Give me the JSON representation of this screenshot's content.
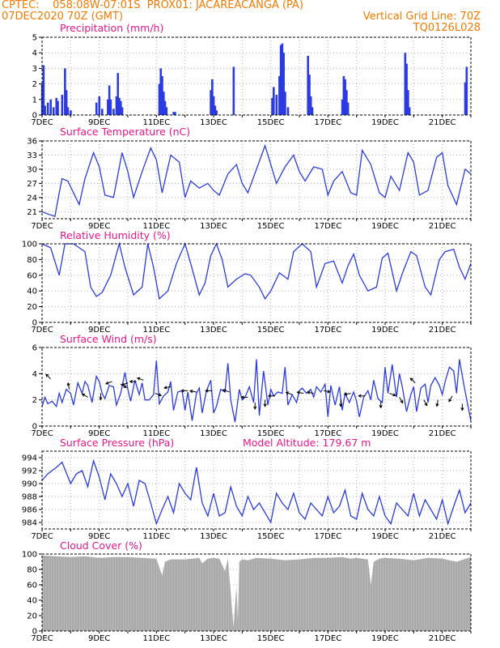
{
  "header": {
    "line1_left": "CPTEC:",
    "coords": "058:08W-07:01S",
    "station": "PROX01: JACAREACANGA (PA)",
    "run": "07DEC2020 70Z (GMT)",
    "grid_line": "Vertical Grid Line: 70Z",
    "code": "TQ0126L028"
  },
  "colors": {
    "header": "#f47a00",
    "titles": "#e8178a",
    "series": "#2b3be0",
    "cloud": "#a9a9a9",
    "grid": "#b0b0b0"
  },
  "x_day_labels": [
    "7DEC",
    "9DEC",
    "11DEC",
    "13DEC",
    "15DEC",
    "17DEC",
    "19DEC",
    "21DEC"
  ],
  "chart_data": [
    {
      "id": "precip",
      "type": "bar",
      "title": "Precipitation (mm/h)",
      "ylim": [
        0,
        5
      ],
      "yticks": [
        "0",
        "1",
        "2",
        "3",
        "4",
        "5"
      ],
      "bars": [
        [
          7.0,
          2.0
        ],
        [
          7.05,
          3.2
        ],
        [
          7.1,
          0.6
        ],
        [
          7.2,
          0.8
        ],
        [
          7.3,
          1.0
        ],
        [
          7.4,
          0.5
        ],
        [
          7.5,
          1.1
        ],
        [
          7.55,
          0.9
        ],
        [
          7.7,
          1.3
        ],
        [
          7.8,
          3.0
        ],
        [
          7.85,
          1.6
        ],
        [
          7.9,
          0.5
        ],
        [
          8.0,
          0.3
        ],
        [
          8.9,
          0.8
        ],
        [
          9.0,
          1.2
        ],
        [
          9.1,
          0.4
        ],
        [
          9.3,
          1.0
        ],
        [
          9.35,
          1.9
        ],
        [
          9.4,
          1.0
        ],
        [
          9.5,
          0.4
        ],
        [
          9.6,
          1.2
        ],
        [
          9.65,
          2.7
        ],
        [
          9.7,
          1.1
        ],
        [
          9.75,
          0.9
        ],
        [
          9.8,
          0.5
        ],
        [
          11.1,
          2.0
        ],
        [
          11.15,
          3.0
        ],
        [
          11.2,
          2.5
        ],
        [
          11.25,
          1.5
        ],
        [
          11.3,
          0.9
        ],
        [
          11.35,
          0.5
        ],
        [
          11.6,
          0.2
        ],
        [
          11.65,
          0.2
        ],
        [
          12.9,
          1.6
        ],
        [
          12.95,
          2.3
        ],
        [
          13.0,
          1.2
        ],
        [
          13.05,
          0.6
        ],
        [
          13.1,
          0.3
        ],
        [
          13.7,
          3.1
        ],
        [
          15.05,
          1.1
        ],
        [
          15.1,
          1.8
        ],
        [
          15.2,
          1.3
        ],
        [
          15.3,
          2.5
        ],
        [
          15.35,
          4.5
        ],
        [
          15.4,
          4.6
        ],
        [
          15.45,
          4.0
        ],
        [
          15.5,
          1.5
        ],
        [
          15.6,
          0.5
        ],
        [
          16.3,
          3.8
        ],
        [
          16.35,
          2.6
        ],
        [
          16.4,
          1.2
        ],
        [
          16.45,
          0.5
        ],
        [
          17.5,
          1.0
        ],
        [
          17.55,
          2.5
        ],
        [
          17.6,
          2.3
        ],
        [
          17.65,
          1.6
        ],
        [
          17.7,
          0.8
        ],
        [
          19.7,
          4.0
        ],
        [
          19.75,
          3.3
        ],
        [
          19.8,
          1.6
        ],
        [
          19.85,
          0.5
        ],
        [
          21.8,
          2.1
        ],
        [
          21.85,
          3.1
        ]
      ]
    },
    {
      "id": "temp",
      "type": "line",
      "title": "Surface Temperature (nC)",
      "ylim": [
        19.5,
        36
      ],
      "yticks": [
        "21",
        "24",
        "27",
        "30",
        "33",
        "36"
      ],
      "x": [
        7.0,
        7.2,
        7.45,
        7.6,
        7.7,
        7.9,
        8.3,
        8.5,
        8.8,
        9.0,
        9.2,
        9.5,
        9.8,
        10.0,
        10.2,
        10.5,
        10.8,
        11.0,
        11.2,
        11.5,
        11.8,
        12.0,
        12.2,
        12.5,
        12.8,
        13.0,
        13.2,
        13.5,
        13.8,
        14.0,
        14.2,
        14.5,
        14.8,
        15.0,
        15.2,
        15.5,
        15.8,
        16.0,
        16.2,
        16.5,
        16.8,
        17.0,
        17.2,
        17.5,
        17.8,
        18.0,
        18.2,
        18.5,
        18.8,
        19.0,
        19.2,
        19.5,
        19.8,
        20.0,
        20.2,
        20.5,
        20.8,
        21.0,
        21.2,
        21.5,
        21.8,
        22.0
      ],
      "y": [
        21.0,
        20.5,
        20.0,
        25.0,
        28.0,
        27.5,
        22.5,
        28.0,
        33.5,
        30.5,
        24.5,
        24.0,
        33.5,
        29.5,
        24.0,
        29.5,
        34.5,
        32.0,
        25.0,
        33.0,
        31.5,
        24.0,
        27.5,
        26.0,
        27.0,
        25.5,
        24.5,
        29.0,
        31.0,
        27.0,
        25.0,
        30.0,
        35.0,
        31.0,
        27.0,
        30.5,
        33.0,
        29.5,
        27.5,
        30.5,
        30.0,
        24.5,
        27.5,
        29.5,
        25.0,
        24.5,
        34.0,
        31.0,
        25.0,
        24.0,
        28.5,
        25.5,
        33.5,
        31.5,
        24.5,
        25.5,
        32.5,
        33.5,
        26.5,
        22.5,
        30.0,
        29.0
      ]
    },
    {
      "id": "rh",
      "type": "line",
      "title": "Relative Humidity (%)",
      "ylim": [
        0,
        100
      ],
      "yticks": [
        "0",
        "20",
        "40",
        "60",
        "80",
        "100"
      ],
      "x": [
        7.0,
        7.3,
        7.6,
        7.8,
        8.1,
        8.5,
        8.7,
        8.9,
        9.1,
        9.4,
        9.7,
        9.9,
        10.2,
        10.5,
        10.7,
        10.9,
        11.1,
        11.4,
        11.7,
        12.0,
        12.2,
        12.5,
        12.7,
        12.9,
        13.1,
        13.3,
        13.5,
        13.8,
        14.1,
        14.3,
        14.6,
        14.8,
        15.0,
        15.3,
        15.6,
        15.8,
        16.1,
        16.4,
        16.6,
        16.9,
        17.2,
        17.5,
        17.7,
        17.9,
        18.1,
        18.4,
        18.7,
        18.9,
        19.1,
        19.4,
        19.6,
        19.9,
        20.1,
        20.4,
        20.6,
        20.9,
        21.1,
        21.4,
        21.6,
        21.8,
        22.0
      ],
      "y": [
        100,
        95,
        60,
        100,
        100,
        90,
        45,
        33,
        38,
        60,
        100,
        70,
        35,
        45,
        100,
        70,
        30,
        40,
        75,
        100,
        75,
        35,
        50,
        85,
        100,
        80,
        45,
        55,
        62,
        60,
        45,
        30,
        40,
        63,
        55,
        90,
        100,
        90,
        45,
        75,
        78,
        50,
        72,
        87,
        60,
        40,
        45,
        82,
        88,
        40,
        62,
        90,
        85,
        45,
        35,
        80,
        90,
        93,
        70,
        55,
        75
      ]
    },
    {
      "id": "wind",
      "type": "line",
      "title": "Surface Wind (m/s)",
      "ylim": [
        0,
        6
      ],
      "yticks": [
        "0",
        "2",
        "4",
        "6"
      ],
      "x": [
        7.0,
        7.1,
        7.2,
        7.35,
        7.5,
        7.6,
        7.7,
        7.85,
        8.0,
        8.1,
        8.25,
        8.4,
        8.5,
        8.6,
        8.75,
        8.9,
        9.0,
        9.1,
        9.2,
        9.35,
        9.5,
        9.6,
        9.75,
        9.9,
        10.0,
        10.1,
        10.25,
        10.4,
        10.5,
        10.6,
        10.75,
        10.9,
        11.0,
        11.1,
        11.25,
        11.4,
        11.5,
        11.6,
        11.75,
        11.9,
        12.0,
        12.1,
        12.25,
        12.4,
        12.5,
        12.6,
        12.75,
        12.9,
        13.0,
        13.1,
        13.25,
        13.4,
        13.5,
        13.6,
        13.75,
        13.9,
        14.0,
        14.1,
        14.25,
        14.4,
        14.5,
        14.6,
        14.75,
        14.9,
        15.0,
        15.1,
        15.25,
        15.4,
        15.5,
        15.6,
        15.75,
        15.9,
        16.0,
        16.1,
        16.25,
        16.4,
        16.5,
        16.6,
        16.75,
        16.9,
        17.0,
        17.1,
        17.25,
        17.4,
        17.5,
        17.6,
        17.75,
        17.9,
        18.0,
        18.1,
        18.25,
        18.4,
        18.5,
        18.6,
        18.75,
        18.9,
        19.0,
        19.1,
        19.25,
        19.4,
        19.5,
        19.6,
        19.75,
        19.9,
        20.0,
        20.1,
        20.25,
        20.4,
        20.5,
        20.6,
        20.75,
        20.9,
        21.0,
        21.1,
        21.25,
        21.4,
        21.5,
        21.6,
        21.75,
        21.9,
        22.0
      ],
      "y": [
        1.5,
        2.2,
        1.7,
        1.9,
        1.5,
        2.5,
        1.8,
        2.8,
        2.5,
        1.6,
        3.3,
        2.5,
        3.4,
        3.1,
        1.8,
        3.8,
        3.4,
        2.5,
        2.1,
        3.1,
        3.0,
        1.6,
        2.5,
        4.1,
        2.8,
        1.9,
        3.5,
        2.4,
        3.3,
        2.0,
        2.0,
        2.4,
        5.0,
        1.7,
        2.3,
        2.6,
        3.4,
        1.2,
        2.6,
        2.7,
        1.2,
        2.6,
        0.4,
        2.5,
        2.9,
        1.0,
        2.7,
        3.5,
        1.0,
        1.5,
        2.8,
        2.6,
        4.8,
        2.0,
        0.3,
        2.8,
        2.0,
        2.2,
        3.0,
        1.8,
        5.1,
        0.8,
        4.2,
        1.6,
        2.8,
        2.3,
        2.6,
        2.5,
        4.5,
        1.6,
        2.4,
        1.8,
        2.7,
        2.9,
        2.5,
        2.8,
        2.2,
        3.0,
        2.6,
        3.2,
        0.7,
        3.1,
        1.6,
        3.0,
        1.2,
        2.5,
        1.8,
        2.6,
        1.9,
        0.7,
        2.2,
        2.7,
        2.0,
        3.5,
        2.1,
        1.8,
        4.5,
        2.5,
        4.7,
        2.2,
        4.0,
        3.0,
        1.1,
        2.4,
        3.0,
        1.1,
        2.9,
        3.2,
        1.8,
        3.1,
        3.7,
        3.1,
        2.4,
        3.4,
        4.5,
        4.2,
        2.5,
        5.1,
        3.2,
        1.5,
        0.4
      ]
    },
    {
      "id": "pressure",
      "type": "line",
      "title": "Surface Pressure (hPa)",
      "note": "Model Altitude: 179.67 m",
      "ylim": [
        983,
        995
      ],
      "yticks": [
        "984",
        "986",
        "988",
        "990",
        "992",
        "994"
      ],
      "x": [
        7.0,
        7.2,
        7.5,
        7.7,
        8.0,
        8.2,
        8.4,
        8.6,
        8.8,
        9.0,
        9.2,
        9.4,
        9.6,
        9.8,
        10.0,
        10.2,
        10.4,
        10.6,
        10.8,
        11.0,
        11.2,
        11.4,
        11.6,
        11.8,
        12.0,
        12.2,
        12.4,
        12.6,
        12.8,
        13.0,
        13.2,
        13.4,
        13.6,
        13.8,
        14.0,
        14.2,
        14.4,
        14.6,
        14.8,
        15.0,
        15.2,
        15.4,
        15.6,
        15.8,
        16.0,
        16.2,
        16.4,
        16.6,
        16.8,
        17.0,
        17.2,
        17.4,
        17.6,
        17.8,
        18.0,
        18.2,
        18.4,
        18.6,
        18.8,
        19.0,
        19.2,
        19.4,
        19.6,
        19.8,
        20.0,
        20.2,
        20.4,
        20.6,
        20.8,
        21.0,
        21.2,
        21.4,
        21.6,
        21.8,
        22.0
      ],
      "y": [
        990.5,
        991.5,
        992.5,
        993.3,
        990.0,
        991.5,
        992.0,
        989.5,
        993.5,
        991.0,
        987.5,
        991.5,
        990.0,
        988.0,
        990.0,
        986.5,
        990.5,
        990.0,
        987.0,
        983.8,
        986.0,
        988.0,
        985.5,
        990.0,
        988.5,
        987.5,
        992.5,
        987.0,
        985.0,
        988.5,
        985.0,
        985.5,
        989.5,
        986.5,
        985.0,
        988.0,
        986.0,
        987.0,
        985.5,
        984.0,
        988.5,
        987.0,
        986.0,
        988.5,
        985.5,
        984.5,
        987.0,
        986.0,
        985.0,
        988.0,
        985.5,
        986.5,
        989.0,
        985.0,
        984.5,
        988.5,
        986.0,
        985.0,
        988.0,
        985.0,
        983.8,
        987.0,
        986.0,
        985.0,
        988.5,
        985.0,
        987.5,
        986.0,
        984.5,
        987.5,
        983.8,
        986.5,
        989.0,
        985.5,
        987.0
      ]
    },
    {
      "id": "cloud",
      "type": "area",
      "title": "Cloud Cover (%)",
      "ylim": [
        0,
        100
      ],
      "yticks": [
        "0",
        "20",
        "40",
        "60",
        "80",
        "100"
      ],
      "x": [
        7.0,
        7.5,
        8.0,
        8.5,
        9.0,
        9.5,
        10.0,
        10.5,
        11.0,
        11.2,
        11.3,
        11.5,
        12.0,
        12.5,
        12.6,
        12.8,
        13.0,
        13.2,
        13.4,
        13.5,
        13.7,
        13.8,
        13.85,
        13.9,
        14.0,
        14.2,
        14.5,
        15.0,
        15.5,
        16.0,
        16.5,
        17.0,
        17.5,
        17.8,
        18.0,
        18.4,
        18.5,
        18.6,
        18.8,
        19.0,
        19.5,
        20.0,
        20.5,
        21.0,
        21.5,
        22.0
      ],
      "y": [
        98,
        97,
        96,
        97,
        95,
        96,
        96,
        95,
        94,
        72,
        90,
        93,
        93,
        95,
        88,
        94,
        95,
        94,
        78,
        94,
        5,
        60,
        15,
        90,
        93,
        92,
        95,
        94,
        92,
        93,
        95,
        95,
        96,
        94,
        95,
        93,
        60,
        90,
        94,
        95,
        94,
        92,
        95,
        94,
        90,
        96
      ]
    }
  ]
}
